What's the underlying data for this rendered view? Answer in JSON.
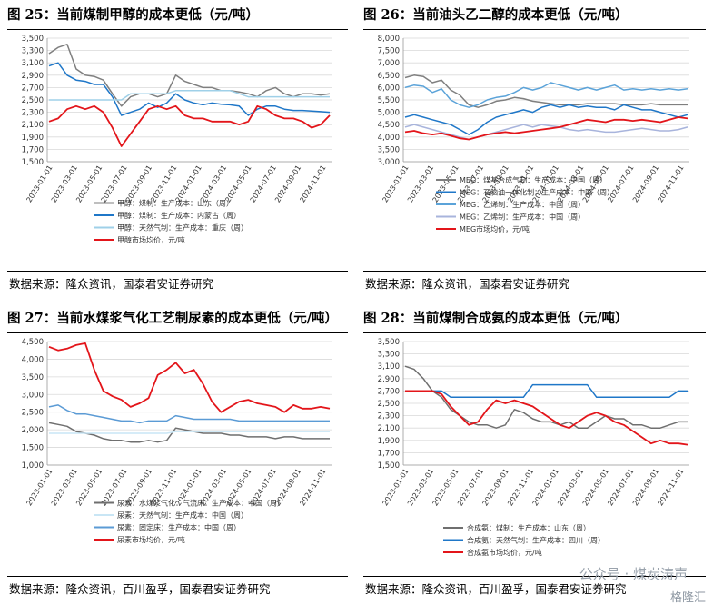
{
  "panels": [
    {
      "title": "图 25：当前煤制甲醇的成本更低（元/吨）",
      "source": "数据来源：隆众资讯，国泰君安证券研究"
    },
    {
      "title": "图 26：当前油头乙二醇的成本更低（元/吨）",
      "source": "数据来源：隆众资讯，国泰君安证券研究"
    },
    {
      "title": "图 27：当前水煤浆气化工艺制尿素的成本更低（元/吨）",
      "source": "数据来源：隆众资讯，百川盈孚，国泰君安证券研究"
    },
    {
      "title": "图 28：当前煤制合成氨的成本更低（元/吨）",
      "source": "数据来源：隆众资讯，百川盈孚，国泰君安证券研究"
    }
  ],
  "watermark": {
    "text": "公众号 · 煤炭涛声",
    "brand": "格隆汇"
  },
  "chart_data": [
    {
      "type": "line",
      "x_tick_labels": [
        "2023-01-01",
        "2023-03-01",
        "2023-05-01",
        "2023-07-01",
        "2023-09-01",
        "2023-11-01",
        "2024-01-01",
        "2024-03-01",
        "2024-05-01",
        "2024-07-01",
        "2024-09-01",
        "2024-11-01"
      ],
      "y_tick_labels": [
        "1,500",
        "1,700",
        "1,900",
        "2,100",
        "2,300",
        "2,500",
        "2,700",
        "2,900",
        "3,100",
        "3,300",
        "3,500"
      ],
      "ylim": [
        1500,
        3500
      ],
      "grid": true,
      "legend_position": "bottom",
      "series": [
        {
          "name": "甲醇：煤制：生产成本：山东（周）",
          "color": "#7f7f7f",
          "values": [
            3250,
            3350,
            3400,
            3000,
            2900,
            2880,
            2820,
            2600,
            2400,
            2550,
            2600,
            2600,
            2550,
            2600,
            2900,
            2800,
            2750,
            2700,
            2700,
            2650,
            2650,
            2630,
            2600,
            2550,
            2650,
            2700,
            2600,
            2550,
            2600,
            2600,
            2580,
            2600
          ]
        },
        {
          "name": "甲醇：煤制：生产成本：内蒙古（周）",
          "color": "#1f77c8",
          "values": [
            3050,
            3100,
            2900,
            2820,
            2800,
            2750,
            2750,
            2550,
            2250,
            2300,
            2350,
            2450,
            2380,
            2450,
            2600,
            2500,
            2450,
            2420,
            2450,
            2430,
            2420,
            2400,
            2250,
            2350,
            2400,
            2400,
            2350,
            2330,
            2330,
            2320,
            2310,
            2300
          ]
        },
        {
          "name": "甲醇：天然气制：生产成本：重庆（周）",
          "color": "#9fd0e8",
          "values": [
            2500,
            2500,
            2500,
            2500,
            2500,
            2500,
            2500,
            2500,
            2500,
            2600,
            2600,
            2600,
            2600,
            2600,
            2650,
            2650,
            2650,
            2650,
            2650,
            2650,
            2650,
            2600,
            2550,
            2550,
            2550,
            2550,
            2550,
            2550,
            2550,
            2550,
            2550,
            2550
          ]
        },
        {
          "name": "甲醇市场均价，元/吨",
          "color": "#e3151a",
          "values": [
            2150,
            2200,
            2350,
            2400,
            2350,
            2400,
            2300,
            2050,
            1750,
            1950,
            2150,
            2350,
            2400,
            2350,
            2400,
            2250,
            2200,
            2200,
            2150,
            2150,
            2150,
            2100,
            2150,
            2400,
            2350,
            2250,
            2200,
            2200,
            2150,
            2050,
            2100,
            2250
          ]
        }
      ]
    },
    {
      "type": "line",
      "x_tick_labels": [
        "2023-01-01",
        "2023-03-01",
        "2023-05-01",
        "2023-07-01",
        "2023-09-01",
        "2023-11-01",
        "2024-01-01",
        "2024-03-01",
        "2024-05-01",
        "2024-07-01",
        "2024-09-01",
        "2024-11-01"
      ],
      "y_tick_labels": [
        "3,000",
        "3,500",
        "4,000",
        "4,500",
        "5,000",
        "5,500",
        "6,000",
        "6,500",
        "7,000",
        "7,500",
        "8,000"
      ],
      "ylim": [
        3000,
        8000
      ],
      "grid": true,
      "legend_position": "bottom",
      "series": [
        {
          "name": "MEG：煤基合成气制：生产成本：中国（周）",
          "color": "#7f7f7f",
          "values": [
            6400,
            6500,
            6450,
            6200,
            6300,
            5900,
            5700,
            5300,
            5200,
            5300,
            5450,
            5500,
            5600,
            5550,
            5450,
            5400,
            5350,
            5300,
            5300,
            5300,
            5350,
            5350,
            5350,
            5350,
            5300,
            5300,
            5300,
            5350,
            5300,
            5300,
            5300,
            5300
          ]
        },
        {
          "name": "MEG：石脑油一体化制：生产成本：中国（周）",
          "color": "#1f77c8",
          "values": [
            4800,
            4900,
            4800,
            4700,
            4600,
            4500,
            4300,
            4100,
            4300,
            4600,
            4800,
            4900,
            5000,
            5100,
            5000,
            5200,
            5300,
            5200,
            5300,
            5200,
            5250,
            5200,
            5200,
            5100,
            5300,
            5200,
            5100,
            5100,
            5000,
            4900,
            4800,
            4900
          ]
        },
        {
          "name": "MEG：乙烯制：生产成本：中国（周）",
          "color": "#5ba3d9",
          "values": [
            6000,
            6100,
            6050,
            5800,
            5950,
            5500,
            5300,
            5200,
            5300,
            5500,
            5600,
            5650,
            5800,
            6000,
            5900,
            6000,
            6200,
            6100,
            6000,
            5900,
            6000,
            5900,
            6000,
            6100,
            5900,
            5950,
            5900,
            5950,
            5900,
            5950,
            5900,
            5950
          ]
        },
        {
          "name": "MEG：乙烯制：生产成本：中国（周）",
          "color": "#a8b4dc",
          "values": [
            4400,
            4500,
            4400,
            4300,
            4200,
            4100,
            4000,
            3900,
            4000,
            4100,
            4200,
            4300,
            4400,
            4500,
            4400,
            4500,
            4450,
            4400,
            4300,
            4250,
            4300,
            4250,
            4200,
            4200,
            4250,
            4300,
            4350,
            4300,
            4250,
            4250,
            4300,
            4400
          ]
        },
        {
          "name": "MEG市场均价，元/吨",
          "color": "#e3151a",
          "values": [
            4200,
            4250,
            4150,
            4100,
            4150,
            4050,
            3950,
            3900,
            4000,
            4100,
            4150,
            4200,
            4150,
            4200,
            4250,
            4300,
            4350,
            4400,
            4500,
            4600,
            4700,
            4650,
            4600,
            4700,
            4700,
            4650,
            4700,
            4650,
            4600,
            4700,
            4800,
            4750
          ]
        }
      ]
    },
    {
      "type": "line",
      "x_tick_labels": [
        "2023-01-01",
        "2023-03-01",
        "2023-05-01",
        "2023-07-01",
        "2023-09-01",
        "2023-11-01",
        "2024-01-01",
        "2024-03-01",
        "2024-05-01",
        "2024-07-01",
        "2024-09-01",
        "2024-11-01"
      ],
      "y_tick_labels": [
        "1,000",
        "1,500",
        "2,000",
        "2,500",
        "3,000",
        "3,500",
        "4,000",
        "4,500"
      ],
      "ylim": [
        1000,
        4500
      ],
      "grid": true,
      "legend_position": "bottom",
      "series": [
        {
          "name": "尿素：水煤浆气化：气流床：生产成本：中国（周）",
          "color": "#6f6f6f",
          "values": [
            2200,
            2150,
            2100,
            1950,
            1900,
            1850,
            1750,
            1700,
            1700,
            1650,
            1650,
            1700,
            1650,
            1700,
            2050,
            2000,
            1950,
            1900,
            1900,
            1900,
            1850,
            1850,
            1800,
            1800,
            1800,
            1750,
            1800,
            1800,
            1750,
            1750,
            1750,
            1750
          ]
        },
        {
          "name": "尿素：天然气制：生产成本：中国（周）",
          "color": "#c9e6f5",
          "values": [
            1900,
            1900,
            1900,
            1900,
            1900,
            1900,
            1900,
            1900,
            1900,
            1900,
            1900,
            1900,
            1900,
            1900,
            1950,
            1950,
            1950,
            1950,
            1950,
            1950,
            1950,
            1950,
            1950,
            1950,
            1950,
            1950,
            1950,
            1950,
            1950,
            1950,
            1950,
            1950
          ]
        },
        {
          "name": "尿素：固定床：生产成本：中国（周）",
          "color": "#5b9bd5",
          "values": [
            2650,
            2700,
            2550,
            2450,
            2450,
            2400,
            2350,
            2300,
            2250,
            2250,
            2200,
            2250,
            2250,
            2250,
            2400,
            2350,
            2300,
            2300,
            2300,
            2300,
            2300,
            2250,
            2250,
            2250,
            2250,
            2250,
            2250,
            2250,
            2250,
            2250,
            2250,
            2250
          ]
        },
        {
          "name": "尿素市场均价，元/吨",
          "color": "#e3151a",
          "values": [
            4350,
            4250,
            4300,
            4400,
            4450,
            3700,
            3100,
            2950,
            2850,
            2650,
            2750,
            2900,
            3550,
            3700,
            3900,
            3600,
            3700,
            3300,
            2800,
            2500,
            2650,
            2800,
            2850,
            2750,
            2700,
            2650,
            2500,
            2700,
            2600,
            2600,
            2650,
            2600
          ]
        }
      ]
    },
    {
      "type": "line",
      "x_tick_labels": [
        "2023-01-01",
        "2023-03-01",
        "2023-05-01",
        "2023-07-01",
        "2023-09-01",
        "2023-11-01",
        "2024-01-01",
        "2024-03-01",
        "2024-05-01",
        "2024-07-01",
        "2024-09-01",
        "2024-11-01"
      ],
      "y_tick_labels": [
        "1,500",
        "1,700",
        "1,900",
        "2,100",
        "2,300",
        "2,500",
        "2,700",
        "2,900",
        "3,100",
        "3,300",
        "3,500"
      ],
      "ylim": [
        1500,
        3500
      ],
      "grid": true,
      "legend_position": "bottom",
      "series": [
        {
          "name": "合成氨：煤制：生产成本：山东（周）",
          "color": "#6f6f6f",
          "values": [
            3100,
            3050,
            2900,
            2700,
            2600,
            2400,
            2300,
            2200,
            2150,
            2150,
            2100,
            2150,
            2400,
            2350,
            2250,
            2200,
            2200,
            2150,
            2200,
            2100,
            2100,
            2200,
            2300,
            2250,
            2250,
            2150,
            2150,
            2100,
            2100,
            2150,
            2200,
            2200
          ]
        },
        {
          "name": "合成氨：天然气制：生产成本：四川（周）",
          "color": "#1f77c8",
          "values": [
            2700,
            2700,
            2700,
            2700,
            2700,
            2600,
            2600,
            2600,
            2600,
            2600,
            2600,
            2600,
            2600,
            2600,
            2800,
            2800,
            2800,
            2800,
            2800,
            2800,
            2800,
            2600,
            2600,
            2600,
            2600,
            2600,
            2600,
            2600,
            2600,
            2600,
            2700,
            2700
          ]
        },
        {
          "name": "合成氨市场均价，元/吨",
          "color": "#e3151a",
          "values": [
            2700,
            2700,
            2700,
            2700,
            2650,
            2450,
            2300,
            2150,
            2200,
            2400,
            2550,
            2500,
            2550,
            2500,
            2450,
            2350,
            2250,
            2150,
            2100,
            2200,
            2300,
            2350,
            2300,
            2200,
            2150,
            2050,
            1950,
            1850,
            1900,
            1850,
            1850,
            1830
          ]
        }
      ]
    }
  ]
}
